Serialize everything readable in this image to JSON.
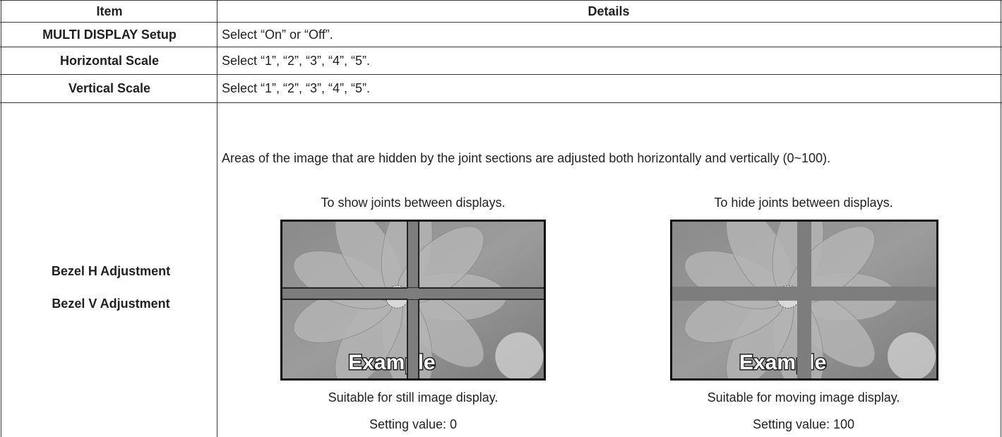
{
  "table": {
    "header": [
      "Item",
      "Details"
    ],
    "rows": [
      {
        "item": [
          "MULTI DISPLAY Setup"
        ],
        "details": "Select “On” or “Off”."
      },
      {
        "item": [
          "Horizontal Scale"
        ],
        "details": "Select “1”, “2”, “3”, “4”, “5”."
      },
      {
        "item": [
          "Vertical Scale"
        ],
        "details": "Select “1”, “2”, “3”, “4”, “5”."
      },
      {
        "item": [
          "Bezel H Adjustment",
          "Bezel V Adjustment"
        ],
        "details": "Areas of the image that are hidden by the joint sections are adjusted both horizontally and vertically (0~100).",
        "examples": [
          {
            "heading": "To show joints between displays.",
            "overlay": "Example",
            "caption": "Suitable for still image display.",
            "setting": "Setting value: 0"
          },
          {
            "heading": "To hide joints between displays.",
            "overlay": "Example",
            "caption": "Suitable for moving image display.",
            "setting": "Setting value: 100"
          }
        ]
      }
    ]
  }
}
